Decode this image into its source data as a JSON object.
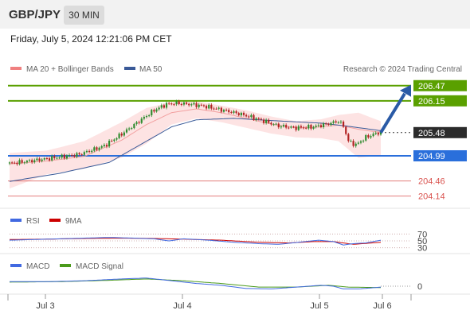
{
  "header": {
    "symbol": "GBP/JPY",
    "interval": "30 MIN"
  },
  "timestamp": "Friday, July 5, 2024 12:21:06 PM CET",
  "source": "Research © 2024 Trading Central",
  "colors": {
    "bull": "#2e8b2e",
    "bear": "#b22222",
    "ma20": "#f08080",
    "ma50": "#3a5a98",
    "resistance": "#5aa000",
    "support": "#2a6fdb",
    "pivot": "#d9534f",
    "rsi": "#4169e1",
    "rsi_ma": "#cc0000",
    "macd": "#4169e1",
    "macd_signal": "#4a9a1a"
  },
  "chart_data": [
    {
      "type": "candlestick",
      "title": "GBP/JPY",
      "interval": "30 MIN",
      "legend": [
        "MA 20 + Bollinger Bands",
        "MA 50"
      ],
      "x_ticks": [
        "Jul 3",
        "Jul 4",
        "Jul 5",
        "Jul 6"
      ],
      "ylim": [
        203.95,
        206.6
      ],
      "last_price": 205.48,
      "projection": {
        "from": 205.48,
        "to": 206.47
      },
      "levels": [
        {
          "value": 206.47,
          "label": "206.47",
          "type": "resistance"
        },
        {
          "value": 206.15,
          "label": "206.15",
          "type": "resistance"
        },
        {
          "value": 205.48,
          "label": "205.48",
          "type": "last"
        },
        {
          "value": 204.99,
          "label": "204.99",
          "type": "support"
        },
        {
          "value": 204.46,
          "label": "204.46",
          "type": "pivot"
        },
        {
          "value": 204.14,
          "label": "204.14",
          "type": "pivot"
        }
      ],
      "close_path": [
        [
          0,
          204.83
        ],
        [
          8,
          204.88
        ],
        [
          18,
          204.95
        ],
        [
          28,
          205.02
        ],
        [
          38,
          205.2
        ],
        [
          45,
          205.45
        ],
        [
          52,
          205.72
        ],
        [
          58,
          205.95
        ],
        [
          63,
          206.08
        ],
        [
          67,
          206.1
        ],
        [
          72,
          206.08
        ],
        [
          78,
          206.04
        ],
        [
          85,
          205.96
        ],
        [
          92,
          205.88
        ],
        [
          100,
          205.76
        ],
        [
          108,
          205.62
        ],
        [
          115,
          205.58
        ],
        [
          122,
          205.6
        ],
        [
          129,
          205.68
        ],
        [
          132,
          205.72
        ],
        [
          134,
          205.62
        ],
        [
          136,
          205.3
        ],
        [
          139,
          205.22
        ],
        [
          143,
          205.38
        ],
        [
          147,
          205.46
        ],
        [
          149,
          205.48
        ]
      ],
      "ma20_path": [
        [
          0,
          204.82
        ],
        [
          15,
          204.88
        ],
        [
          30,
          204.98
        ],
        [
          45,
          205.32
        ],
        [
          55,
          205.65
        ],
        [
          65,
          205.9
        ],
        [
          75,
          205.98
        ],
        [
          85,
          205.9
        ],
        [
          95,
          205.78
        ],
        [
          105,
          205.66
        ],
        [
          115,
          205.58
        ],
        [
          125,
          205.6
        ],
        [
          132,
          205.64
        ],
        [
          140,
          205.55
        ],
        [
          149,
          205.48
        ]
      ],
      "bb_upper_path": [
        [
          0,
          205.05
        ],
        [
          15,
          205.1
        ],
        [
          30,
          205.3
        ],
        [
          45,
          205.7
        ],
        [
          55,
          206.0
        ],
        [
          65,
          206.12
        ],
        [
          75,
          206.14
        ],
        [
          85,
          206.05
        ],
        [
          95,
          205.95
        ],
        [
          105,
          205.82
        ],
        [
          115,
          205.72
        ],
        [
          125,
          205.76
        ],
        [
          132,
          205.85
        ],
        [
          140,
          205.9
        ],
        [
          149,
          205.72
        ]
      ],
      "bb_lower_path": [
        [
          0,
          204.3
        ],
        [
          15,
          204.6
        ],
        [
          30,
          204.72
        ],
        [
          45,
          204.95
        ],
        [
          55,
          205.25
        ],
        [
          65,
          205.65
        ],
        [
          75,
          205.78
        ],
        [
          85,
          205.7
        ],
        [
          95,
          205.58
        ],
        [
          105,
          205.46
        ],
        [
          115,
          205.38
        ],
        [
          125,
          205.36
        ],
        [
          132,
          205.3
        ],
        [
          140,
          204.95
        ],
        [
          149,
          205.0
        ]
      ],
      "ma50_path": [
        [
          0,
          204.45
        ],
        [
          20,
          204.62
        ],
        [
          40,
          204.85
        ],
        [
          55,
          205.3
        ],
        [
          65,
          205.6
        ],
        [
          75,
          205.75
        ],
        [
          90,
          205.78
        ],
        [
          110,
          205.72
        ],
        [
          125,
          205.68
        ],
        [
          135,
          205.62
        ],
        [
          149,
          205.52
        ]
      ]
    },
    {
      "type": "line",
      "title": "RSI",
      "series": [
        {
          "name": "RSI"
        },
        {
          "name": "9MA"
        }
      ],
      "ylim": [
        20,
        80
      ],
      "y_ticks": [
        70,
        50,
        30
      ],
      "rsi_path": [
        [
          0,
          52
        ],
        [
          10,
          54
        ],
        [
          20,
          56
        ],
        [
          30,
          58
        ],
        [
          40,
          60
        ],
        [
          50,
          58
        ],
        [
          58,
          56
        ],
        [
          64,
          50
        ],
        [
          70,
          56
        ],
        [
          80,
          52
        ],
        [
          90,
          46
        ],
        [
          100,
          42
        ],
        [
          108,
          40
        ],
        [
          116,
          46
        ],
        [
          124,
          52
        ],
        [
          130,
          48
        ],
        [
          134,
          38
        ],
        [
          138,
          42
        ],
        [
          143,
          44
        ],
        [
          149,
          52
        ]
      ],
      "ma9_path": [
        [
          0,
          54
        ],
        [
          15,
          55
        ],
        [
          30,
          57
        ],
        [
          45,
          58
        ],
        [
          58,
          57
        ],
        [
          70,
          55
        ],
        [
          85,
          52
        ],
        [
          100,
          46
        ],
        [
          112,
          44
        ],
        [
          122,
          48
        ],
        [
          130,
          48
        ],
        [
          138,
          40
        ],
        [
          149,
          46
        ]
      ]
    },
    {
      "type": "line",
      "title": "MACD",
      "series": [
        {
          "name": "MACD"
        },
        {
          "name": "MACD Signal"
        }
      ],
      "ylim": [
        -0.35,
        0.35
      ],
      "y_ticks": [
        0
      ],
      "macd_path": [
        [
          0,
          0.1
        ],
        [
          15,
          0.1
        ],
        [
          30,
          0.12
        ],
        [
          45,
          0.16
        ],
        [
          55,
          0.18
        ],
        [
          65,
          0.12
        ],
        [
          75,
          0.06
        ],
        [
          85,
          0.02
        ],
        [
          95,
          -0.05
        ],
        [
          105,
          -0.06
        ],
        [
          115,
          -0.02
        ],
        [
          125,
          0.02
        ],
        [
          130,
          0.0
        ],
        [
          134,
          -0.06
        ],
        [
          140,
          -0.06
        ],
        [
          149,
          -0.02
        ]
      ],
      "signal_path": [
        [
          0,
          0.09
        ],
        [
          20,
          0.1
        ],
        [
          40,
          0.13
        ],
        [
          55,
          0.16
        ],
        [
          70,
          0.12
        ],
        [
          85,
          0.06
        ],
        [
          100,
          -0.02
        ],
        [
          115,
          -0.02
        ],
        [
          128,
          0.02
        ],
        [
          136,
          -0.02
        ],
        [
          149,
          -0.03
        ]
      ]
    }
  ]
}
